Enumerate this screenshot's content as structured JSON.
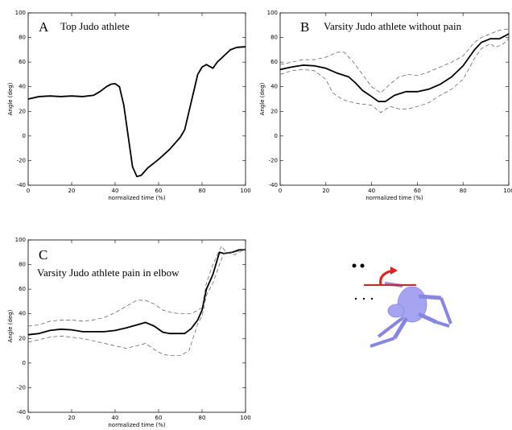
{
  "chart_data": [
    {
      "type": "line",
      "panel_label": "A",
      "title": "Top Judo athlete",
      "y_label": "Angle (deg)",
      "x_label": "normalized time (%)",
      "xlim": [
        0,
        100
      ],
      "xticks": [
        0,
        20,
        40,
        60,
        80,
        100
      ],
      "ylim": [
        -40,
        100
      ],
      "yticks": [
        -40,
        -20,
        0,
        20,
        40,
        60,
        80,
        100
      ],
      "series": [
        {
          "color": "#000000",
          "style": "solid",
          "x": [
            0,
            5,
            10,
            15,
            20,
            25,
            30,
            33,
            36,
            38,
            40,
            42,
            44,
            46,
            48,
            50,
            52,
            55,
            60,
            65,
            70,
            72,
            74,
            76,
            78,
            80,
            82,
            85,
            87,
            90,
            93,
            96,
            100
          ],
          "values": [
            30,
            32,
            32.5,
            32,
            32.5,
            32,
            33,
            36,
            40,
            42,
            42.5,
            40,
            25,
            0,
            -25,
            -33,
            -32,
            -26,
            -19,
            -11,
            -1,
            5,
            20,
            35,
            50,
            56,
            58,
            55,
            60,
            65,
            70,
            72,
            72.5
          ]
        }
      ]
    },
    {
      "type": "line",
      "panel_label": "B",
      "title": "Varsity Judo athlete without pain",
      "y_label": "Angle (deg)",
      "x_label": "normalized time (%)",
      "xlim": [
        0,
        100
      ],
      "xticks": [
        0,
        20,
        40,
        60,
        80,
        100
      ],
      "ylim": [
        -40,
        100
      ],
      "yticks": [
        -40,
        -20,
        0,
        20,
        40,
        60,
        80,
        100
      ],
      "series": [
        {
          "color": "#000000",
          "style": "solid",
          "x": [
            0,
            5,
            10,
            15,
            20,
            25,
            30,
            33,
            36,
            40,
            43,
            46,
            50,
            55,
            60,
            65,
            70,
            75,
            80,
            85,
            88,
            92,
            96,
            100
          ],
          "values": [
            54,
            56,
            57.5,
            57,
            55,
            51,
            48,
            43,
            37,
            32,
            28,
            28,
            33,
            36,
            36,
            38,
            42,
            48,
            57,
            70,
            76,
            79,
            79,
            83
          ]
        },
        {
          "color": "#555555",
          "style": "dashed",
          "x": [
            0,
            5,
            10,
            15,
            20,
            25,
            28,
            32,
            36,
            40,
            44,
            48,
            52,
            56,
            60,
            65,
            70,
            75,
            80,
            85,
            88,
            92,
            96,
            100
          ],
          "values": [
            58,
            60,
            62,
            62,
            64,
            68,
            68,
            60,
            50,
            40,
            35,
            42,
            48,
            50,
            49,
            52,
            56,
            60,
            65,
            76,
            80,
            83,
            86,
            87
          ]
        },
        {
          "color": "#555555",
          "style": "dashed",
          "x": [
            0,
            5,
            10,
            15,
            20,
            23,
            27,
            30,
            35,
            40,
            44,
            48,
            52,
            56,
            60,
            65,
            70,
            75,
            80,
            85,
            88,
            92,
            94,
            97,
            100
          ],
          "values": [
            50,
            53,
            54,
            53,
            46,
            35,
            30,
            28,
            26,
            25,
            19,
            24,
            22,
            22,
            24,
            27,
            33,
            38,
            46,
            63,
            71,
            75,
            72,
            74,
            79
          ]
        }
      ]
    },
    {
      "type": "line",
      "panel_label": "C",
      "title": "Varsity Judo athlete pain in elbow",
      "y_label": "Angle (deg)",
      "x_label": "normalized time (%)",
      "xlim": [
        0,
        100
      ],
      "xticks": [
        0,
        20,
        40,
        60,
        80,
        100
      ],
      "ylim": [
        -40,
        100
      ],
      "yticks": [
        -40,
        -20,
        0,
        20,
        40,
        60,
        80,
        100
      ],
      "series": [
        {
          "color": "#000000",
          "style": "solid",
          "x": [
            0,
            5,
            10,
            15,
            20,
            25,
            30,
            35,
            40,
            45,
            50,
            54,
            58,
            62,
            65,
            68,
            72,
            75,
            78,
            80,
            82,
            85,
            88,
            90,
            94,
            97,
            100
          ],
          "values": [
            23,
            24,
            26.5,
            27.5,
            27,
            25.5,
            25.5,
            25.5,
            26.5,
            28.5,
            31,
            33,
            30,
            25,
            24,
            24,
            24,
            28,
            35,
            43,
            60,
            72,
            90,
            89,
            90,
            92,
            92
          ]
        },
        {
          "color": "#555555",
          "style": "dashed",
          "x": [
            0,
            5,
            10,
            15,
            20,
            25,
            30,
            35,
            40,
            45,
            50,
            54,
            58,
            62,
            66,
            70,
            75,
            78,
            80,
            82,
            85,
            87,
            89,
            91,
            95,
            100
          ],
          "values": [
            30,
            31,
            34,
            35,
            35,
            34,
            35,
            37,
            41,
            46,
            51,
            51,
            48,
            43,
            41,
            40,
            40,
            43,
            45,
            65,
            80,
            88,
            95,
            90,
            88,
            93
          ]
        },
        {
          "color": "#555555",
          "style": "dashed",
          "x": [
            0,
            5,
            10,
            15,
            20,
            25,
            30,
            35,
            40,
            45,
            50,
            54,
            58,
            62,
            66,
            70,
            74,
            78,
            80,
            82,
            85,
            88,
            90,
            94,
            97,
            100
          ],
          "values": [
            17,
            19,
            21,
            22,
            21,
            20,
            18,
            16,
            14,
            12,
            14,
            16,
            11,
            7,
            6,
            6,
            10,
            32,
            38,
            55,
            65,
            80,
            89,
            90,
            91,
            92
          ]
        }
      ]
    }
  ]
}
